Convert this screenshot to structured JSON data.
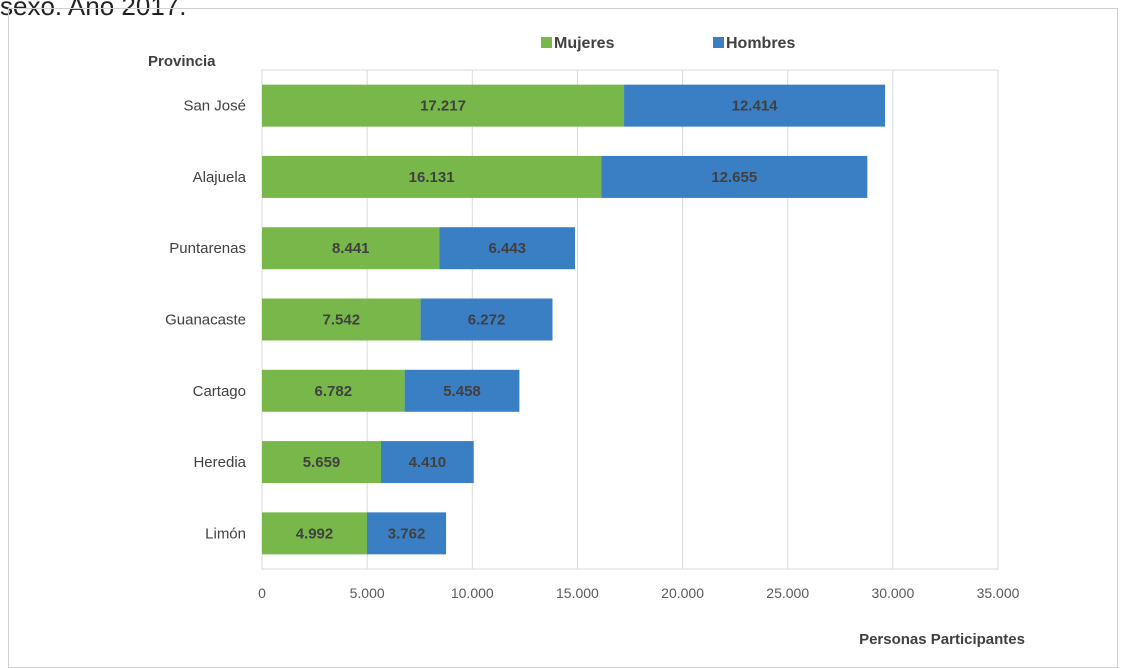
{
  "figure": {
    "clipped_title": "sexo. Año 2017."
  },
  "chart_data": {
    "type": "bar",
    "orientation": "horizontal",
    "stacked": true,
    "categories": [
      "San José",
      "Alajuela",
      "Puntarenas",
      "Guanacaste",
      "Cartago",
      "Heredia",
      "Limón"
    ],
    "series": [
      {
        "name": "Mujeres",
        "color": "#78b84a",
        "values": [
          17217,
          16131,
          8441,
          7542,
          6782,
          5659,
          4992
        ],
        "labels": [
          "17.217",
          "16.131",
          "8.441",
          "7.542",
          "6.782",
          "5.659",
          "4.992"
        ]
      },
      {
        "name": "Hombres",
        "color": "#3a7ec4",
        "values": [
          12414,
          12655,
          6443,
          6272,
          5458,
          4410,
          3762
        ],
        "labels": [
          "12.414",
          "12.655",
          "6.443",
          "6.272",
          "5.458",
          "4.410",
          "3.762"
        ]
      }
    ],
    "xlim": [
      0,
      35000
    ],
    "x_ticks": [
      0,
      5000,
      10000,
      15000,
      20000,
      25000,
      30000,
      35000
    ],
    "x_tick_labels": [
      "0",
      "5.000",
      "10.000",
      "15.000",
      "20.000",
      "25.000",
      "30.000",
      "35.000"
    ],
    "xlabel": "Personas Participantes",
    "ylabel": "Provincia",
    "grid": true,
    "legend_position": "top"
  }
}
